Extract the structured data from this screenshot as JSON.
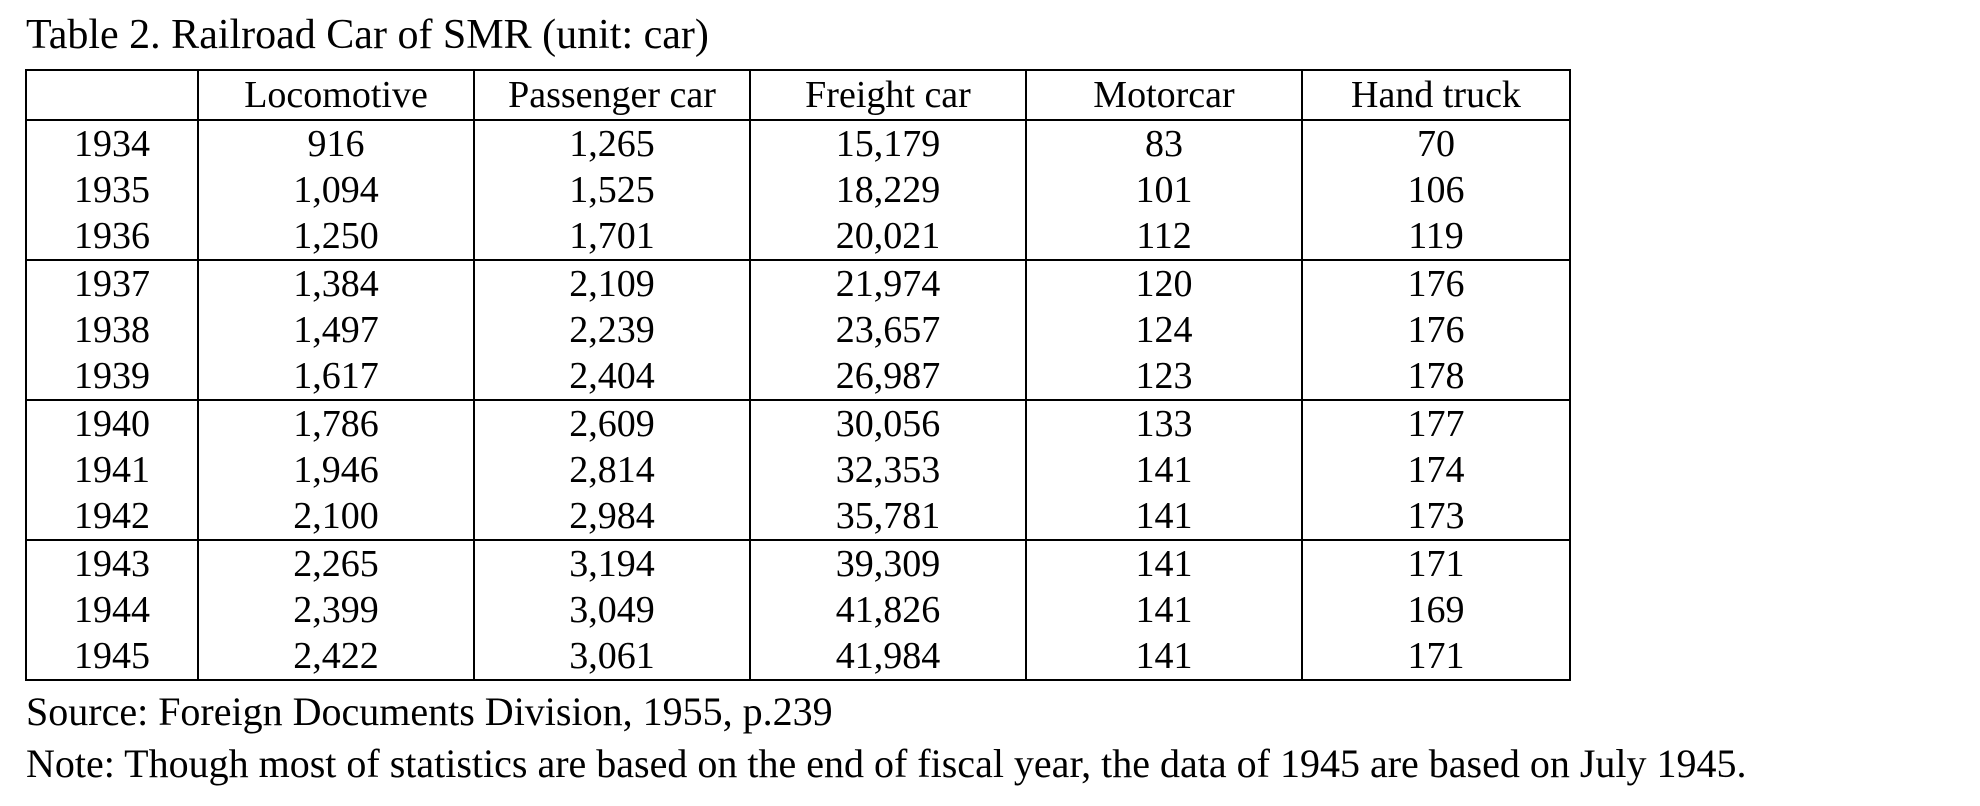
{
  "caption": "Table 2. Railroad Car of SMR (unit: car)",
  "table": {
    "columns": [
      "",
      "Locomotive",
      "Passenger car",
      "Freight car",
      "Motorcar",
      "Hand truck"
    ],
    "groups": [
      [
        {
          "year": "1934",
          "values": [
            "916",
            "1,265",
            "15,179",
            "83",
            "70"
          ]
        },
        {
          "year": "1935",
          "values": [
            "1,094",
            "1,525",
            "18,229",
            "101",
            "106"
          ]
        },
        {
          "year": "1936",
          "values": [
            "1,250",
            "1,701",
            "20,021",
            "112",
            "119"
          ]
        }
      ],
      [
        {
          "year": "1937",
          "values": [
            "1,384",
            "2,109",
            "21,974",
            "120",
            "176"
          ]
        },
        {
          "year": "1938",
          "values": [
            "1,497",
            "2,239",
            "23,657",
            "124",
            "176"
          ]
        },
        {
          "year": "1939",
          "values": [
            "1,617",
            "2,404",
            "26,987",
            "123",
            "178"
          ]
        }
      ],
      [
        {
          "year": "1940",
          "values": [
            "1,786",
            "2,609",
            "30,056",
            "133",
            "177"
          ]
        },
        {
          "year": "1941",
          "values": [
            "1,946",
            "2,814",
            "32,353",
            "141",
            "174"
          ]
        },
        {
          "year": "1942",
          "values": [
            "2,100",
            "2,984",
            "35,781",
            "141",
            "173"
          ]
        }
      ],
      [
        {
          "year": "1943",
          "values": [
            "2,265",
            "3,194",
            "39,309",
            "141",
            "171"
          ]
        },
        {
          "year": "1944",
          "values": [
            "2,399",
            "3,049",
            "41,826",
            "141",
            "169"
          ]
        },
        {
          "year": "1945",
          "values": [
            "2,422",
            "3,061",
            "41,984",
            "141",
            "171"
          ]
        }
      ]
    ]
  },
  "source": "Source: Foreign Documents Division, 1955, p.239",
  "note": "Note: Though most of statistics are based on the end of fiscal year, the data of 1945 are based on July 1945."
}
